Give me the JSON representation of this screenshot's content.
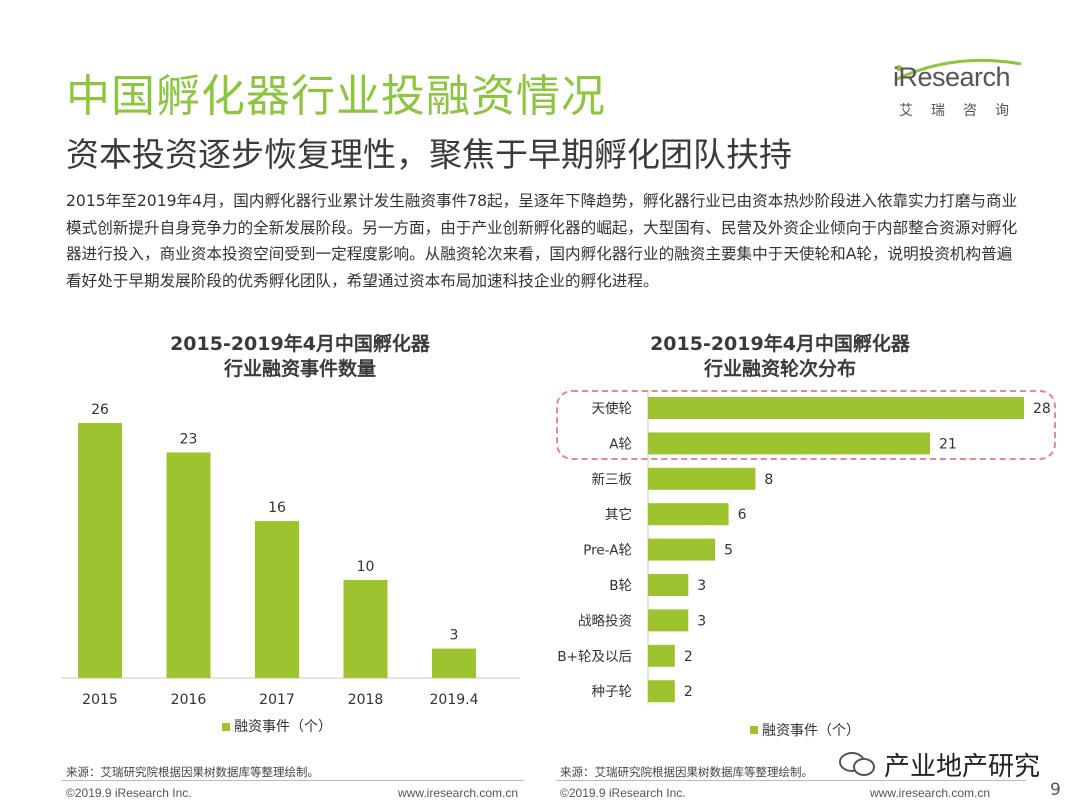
{
  "header": {
    "title": "中国孵化器行业投融资情况",
    "subtitle": "资本投资逐步恢复理性，聚焦于早期孵化团队扶持"
  },
  "logo": {
    "name": "iResearch",
    "sub": "艾瑞咨询"
  },
  "body_text": "2015年至2019年4月，国内孵化器行业累计发生融资事件78起，呈逐年下降趋势，孵化器行业已由资本热炒阶段进入依靠实力打磨与商业模式创新提升自身竞争力的全新发展阶段。另一方面，由于产业创新孵化器的崛起，大型国有、民营及外资企业倾向于内部整合资源对孵化器进行投入，商业资本投资空间受到一定程度影响。从融资轮次来看，国内孵化器行业的融资主要集中于天使轮和A轮，说明投资机构普遍看好处于早期发展阶段的优秀孵化团队，希望通过资本布局加速科技企业的孵化进程。",
  "colors": {
    "accent": "#8cc63f",
    "bar": "#9dc42f",
    "highlight": "#e8888a"
  },
  "chart_data": [
    {
      "type": "bar",
      "title_line1": "2015-2019年4月中国孵化器",
      "title_line2": "行业融资事件数量",
      "categories": [
        "2015",
        "2016",
        "2017",
        "2018",
        "2019.4"
      ],
      "values": [
        26,
        23,
        16,
        10,
        3
      ],
      "legend": "融资事件（个）",
      "ylim": [
        0,
        30
      ]
    },
    {
      "type": "bar",
      "orientation": "horizontal",
      "title_line1": "2015-2019年4月中国孵化器",
      "title_line2": "行业融资轮次分布",
      "categories": [
        "天使轮",
        "A轮",
        "新三板",
        "其它",
        "Pre-A轮",
        "B轮",
        "战略投资",
        "B+轮及以后",
        "种子轮"
      ],
      "values": [
        28,
        21,
        8,
        6,
        5,
        3,
        3,
        2,
        2
      ],
      "legend": "融资事件（个）",
      "xlim": [
        0,
        28
      ],
      "highlighted": [
        "天使轮",
        "A轮"
      ]
    }
  ],
  "footer": {
    "source_left": "来源：艾瑞研究院根据因果树数据库等整理绘制。",
    "source_right": "来源：艾瑞研究院根据因果树数据库等整理绘制。",
    "copyright_left": "©2019.9 iResearch Inc.",
    "website_left": "www.iresearch.com.cn",
    "copyright_right": "©2019.9 iResearch Inc.",
    "website_right": "www.iresearch.com.cn",
    "page_number": "9"
  },
  "watermark": "产业地产研究"
}
